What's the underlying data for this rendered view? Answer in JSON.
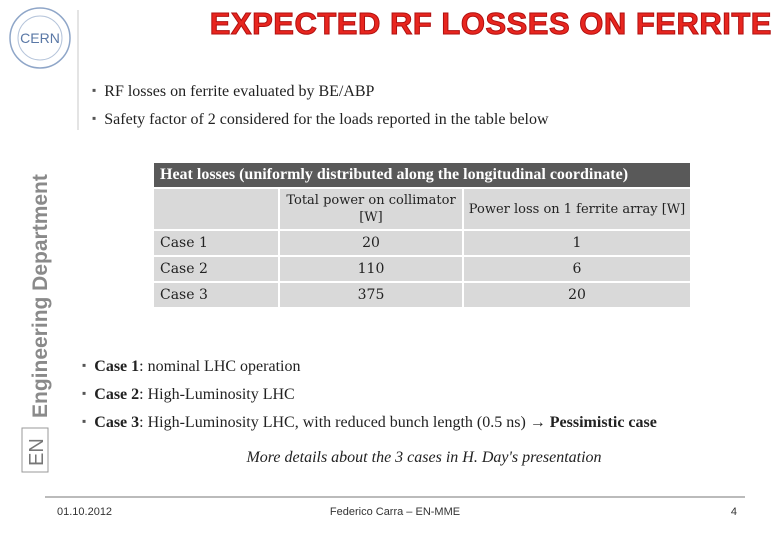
{
  "header": {
    "logo": "CERN",
    "title": "EXPECTED RF LOSSES ON FERRITE",
    "department": "Engineering Department",
    "unit": "EN"
  },
  "intro_bullets": [
    "RF losses on ferrite evaluated by BE/ABP",
    "Safety factor of 2 considered for the loads reported in the table below"
  ],
  "table": {
    "caption": "Heat losses (uniformly distributed along the longitudinal coordinate)",
    "columns": [
      "Total power on collimator [W]",
      "Power loss on 1 ferrite array [W]"
    ],
    "rows": [
      [
        "Case 1",
        20,
        1
      ],
      [
        "Case 2",
        110,
        6
      ],
      [
        "Case 3",
        375,
        20
      ]
    ]
  },
  "case_bullets": [
    [
      {
        "text": "Case 1",
        "bold": true
      },
      {
        "text": ": nominal LHC operation",
        "bold": false
      }
    ],
    [
      {
        "text": "Case 2",
        "bold": true
      },
      {
        "text": ": High-Luminosity LHC",
        "bold": false
      }
    ],
    [
      {
        "text": "Case 3",
        "bold": true
      },
      {
        "text": ": High-Luminosity LHC, with reduced bunch length (0.5 ns) → ",
        "bold": false
      },
      {
        "text": "Pessimistic case",
        "bold": true
      }
    ]
  ],
  "note": "More details about the 3 cases in H. Day's presentation",
  "footer": {
    "date": "01.10.2012",
    "author": "Federico Carra – EN-MME",
    "page": 4
  }
}
